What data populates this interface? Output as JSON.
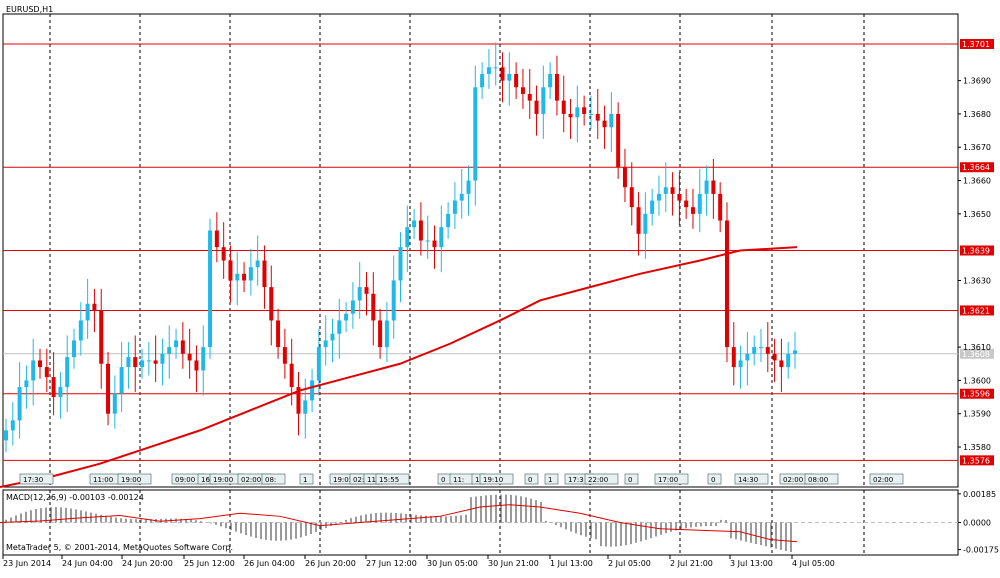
{
  "chart_data": {
    "type": "candlestick",
    "symbol_label": "EURUSD,H1",
    "copyright": "MetaTrader 5, © 2001-2014, MetaQuotes Software Corp.",
    "price_axis": {
      "ylim": [
        1.3568,
        1.371
      ],
      "ticks": [
        "1.3690",
        "1.3680",
        "1.3670",
        "1.3660",
        "1.3650",
        "1.3630",
        "1.3610",
        "1.3600",
        "1.3590",
        "1.3580"
      ],
      "tick_values": [
        1.369,
        1.368,
        1.367,
        1.366,
        1.365,
        1.363,
        1.361,
        1.36,
        1.359,
        1.358
      ]
    },
    "time_axis": {
      "labels": [
        "23 Jun 2014",
        "24 Jun 04:00",
        "24 Jun 20:00",
        "25 Jun 12:00",
        "26 Jun 04:00",
        "26 Jun 20:00",
        "27 Jun 12:00",
        "30 Jun 05:00",
        "30 Jun 21:00",
        "1 Jul 13:00",
        "2 Jul 05:00",
        "2 Jul 21:00",
        "3 Jul 13:00",
        "4 Jul 05:00"
      ]
    },
    "horizontal_levels": [
      {
        "value": 1.3701,
        "label": "1.3701"
      },
      {
        "value": 1.3664,
        "label": "1.3664"
      },
      {
        "value": 1.3639,
        "label": "1.3639"
      },
      {
        "value": 1.3621,
        "label": "1.3621"
      },
      {
        "value": 1.3596,
        "label": "1.3596"
      },
      {
        "value": 1.3576,
        "label": "1.3576"
      }
    ],
    "bid_line": {
      "value": 1.3608,
      "label": "1.3608"
    },
    "event_labels": [
      "17:30",
      "11:00",
      "19:00",
      "09:00",
      "16",
      "19:00",
      "02:00",
      "08:",
      "1",
      "19:05",
      "02:00",
      "11",
      "15:55",
      "0",
      "11:",
      "1",
      "19:10",
      "0",
      "1",
      "17:3",
      "22:00",
      "0",
      "17:00",
      "0",
      "14:30",
      "02:00",
      "08:00",
      "02:00"
    ],
    "moving_average": [
      [
        0,
        1.3568
      ],
      [
        50,
        1.3571
      ],
      [
        100,
        1.3575
      ],
      [
        150,
        1.358
      ],
      [
        200,
        1.3585
      ],
      [
        250,
        1.3591
      ],
      [
        300,
        1.3597
      ],
      [
        350,
        1.3601
      ],
      [
        400,
        1.3605
      ],
      [
        450,
        1.3611
      ],
      [
        500,
        1.3618
      ],
      [
        540,
        1.3624
      ],
      [
        590,
        1.3628
      ],
      [
        640,
        1.3632
      ],
      [
        700,
        1.3636
      ],
      [
        740,
        1.3639
      ],
      [
        797,
        1.364
      ]
    ],
    "candle_closes": [
      1.3585,
      1.3588,
      1.3598,
      1.36,
      1.3606,
      1.3604,
      1.3601,
      1.3595,
      1.3598,
      1.3607,
      1.3612,
      1.3618,
      1.3623,
      1.3621,
      1.3605,
      1.359,
      1.3596,
      1.3604,
      1.3607,
      1.3604,
      1.3606,
      1.3606,
      1.3605,
      1.3608,
      1.361,
      1.3612,
      1.3608,
      1.3606,
      1.3603,
      1.361,
      1.3645,
      1.364,
      1.3636,
      1.363,
      1.3632,
      1.363,
      1.3634,
      1.3636,
      1.3628,
      1.3618,
      1.361,
      1.3605,
      1.3598,
      1.359,
      1.3594,
      1.36,
      1.361,
      1.3612,
      1.3614,
      1.3618,
      1.362,
      1.3624,
      1.3628,
      1.3626,
      1.3618,
      1.361,
      1.3618,
      1.363,
      1.364,
      1.3646,
      1.3648,
      1.3642,
      1.3642,
      1.364,
      1.3646,
      1.365,
      1.3654,
      1.3656,
      1.366,
      1.3688,
      1.3692,
      1.3694,
      1.3694,
      1.369,
      1.3692,
      1.3688,
      1.3686,
      1.3684,
      1.368,
      1.3688,
      1.3692,
      1.3684,
      1.368,
      1.3679,
      1.3682,
      1.368,
      1.368,
      1.3678,
      1.3676,
      1.368,
      1.3664,
      1.3658,
      1.3652,
      1.3644,
      1.365,
      1.3654,
      1.3656,
      1.3658,
      1.3656,
      1.3654,
      1.3652,
      1.365,
      1.3656,
      1.366,
      1.3656,
      1.3648,
      1.361,
      1.3604,
      1.3606,
      1.3608,
      1.361,
      1.361,
      1.3608,
      1.3606,
      1.3604,
      1.3608,
      1.3609
    ],
    "macd": {
      "label": "MACD(12,26,9) -0.00103 -0.00124",
      "ticks": [
        "0.00185",
        "0.0000",
        "-0.00175"
      ],
      "tick_values": [
        0.00185,
        0.0,
        -0.00175
      ],
      "ylim": [
        -0.0021,
        0.0021
      ],
      "signal": [
        [
          0,
          0.0
        ],
        [
          40,
          0.0001
        ],
        [
          80,
          0.0003
        ],
        [
          120,
          0.00045
        ],
        [
          160,
          8e-05
        ],
        [
          200,
          0.00025
        ],
        [
          240,
          0.0006
        ],
        [
          280,
          0.0004
        ],
        [
          320,
          -0.0002
        ],
        [
          360,
          0.0
        ],
        [
          400,
          0.0002
        ],
        [
          440,
          0.0004
        ],
        [
          480,
          0.001
        ],
        [
          510,
          0.00115
        ],
        [
          540,
          0.001
        ],
        [
          580,
          0.0006
        ],
        [
          620,
          0.0
        ],
        [
          660,
          -0.0004
        ],
        [
          700,
          -0.0005
        ],
        [
          740,
          -0.0006
        ],
        [
          770,
          -0.0011
        ],
        [
          797,
          -0.00124
        ]
      ]
    }
  }
}
